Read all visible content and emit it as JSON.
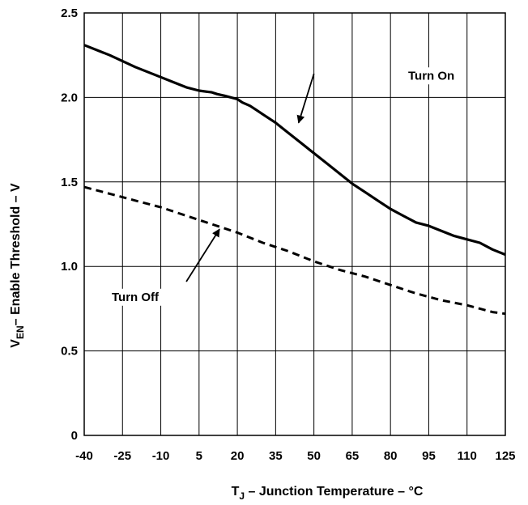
{
  "chart_data": {
    "type": "line",
    "title": "",
    "xlabel": {
      "main": "T",
      "sub": "J",
      "rest": " – Junction Temperature – °C"
    },
    "ylabel": {
      "main": "V",
      "sub": "EN",
      "rest": "– Enable Threshold – V"
    },
    "xlim": [
      -40,
      125
    ],
    "ylim": [
      0,
      2.5
    ],
    "xticks": [
      -40,
      -25,
      -10,
      5,
      20,
      35,
      50,
      65,
      80,
      95,
      110,
      125
    ],
    "xtick_labels": [
      "-40",
      "-25",
      "-10",
      "5",
      "20",
      "35",
      "50",
      "65",
      "80",
      "95",
      "110",
      "125"
    ],
    "yticks": [
      0,
      0.5,
      1.0,
      1.5,
      2.0,
      2.5
    ],
    "ytick_labels": [
      "0",
      "0.5",
      "1.0",
      "1.5",
      "2.0",
      "2.5"
    ],
    "grid": true,
    "series": [
      {
        "name": "Turn On",
        "style": "solid",
        "color": "#000000",
        "x": [
          -40,
          -30,
          -20,
          -10,
          -5,
          0,
          5,
          10,
          12,
          15,
          20,
          22,
          25,
          28,
          30,
          35,
          40,
          45,
          50,
          55,
          60,
          65,
          70,
          75,
          80,
          85,
          90,
          95,
          100,
          105,
          110,
          115,
          120,
          125
        ],
        "y": [
          2.31,
          2.25,
          2.18,
          2.12,
          2.09,
          2.06,
          2.04,
          2.03,
          2.02,
          2.01,
          1.99,
          1.97,
          1.95,
          1.92,
          1.9,
          1.85,
          1.79,
          1.73,
          1.67,
          1.61,
          1.55,
          1.49,
          1.44,
          1.39,
          1.34,
          1.3,
          1.26,
          1.24,
          1.21,
          1.18,
          1.16,
          1.14,
          1.1,
          1.07
        ]
      },
      {
        "name": "Turn Off",
        "style": "dashed",
        "color": "#000000",
        "x": [
          -40,
          -30,
          -20,
          -10,
          0,
          10,
          20,
          30,
          40,
          50,
          60,
          70,
          80,
          90,
          100,
          110,
          120,
          125
        ],
        "y": [
          1.47,
          1.43,
          1.39,
          1.35,
          1.3,
          1.25,
          1.2,
          1.14,
          1.09,
          1.03,
          0.98,
          0.94,
          0.89,
          0.84,
          0.8,
          0.77,
          0.73,
          0.72
        ]
      }
    ],
    "annotations": [
      {
        "text": "Turn On",
        "series": "Turn On",
        "label_at": [
          96,
          2.13
        ],
        "arrow_from": [
          50,
          2.14
        ],
        "arrow_to": [
          44,
          1.85
        ]
      },
      {
        "text": "Turn Off",
        "series": "Turn Off",
        "label_at": [
          -20,
          0.82
        ],
        "arrow_from": [
          0,
          0.91
        ],
        "arrow_to": [
          13,
          1.22
        ]
      }
    ]
  }
}
